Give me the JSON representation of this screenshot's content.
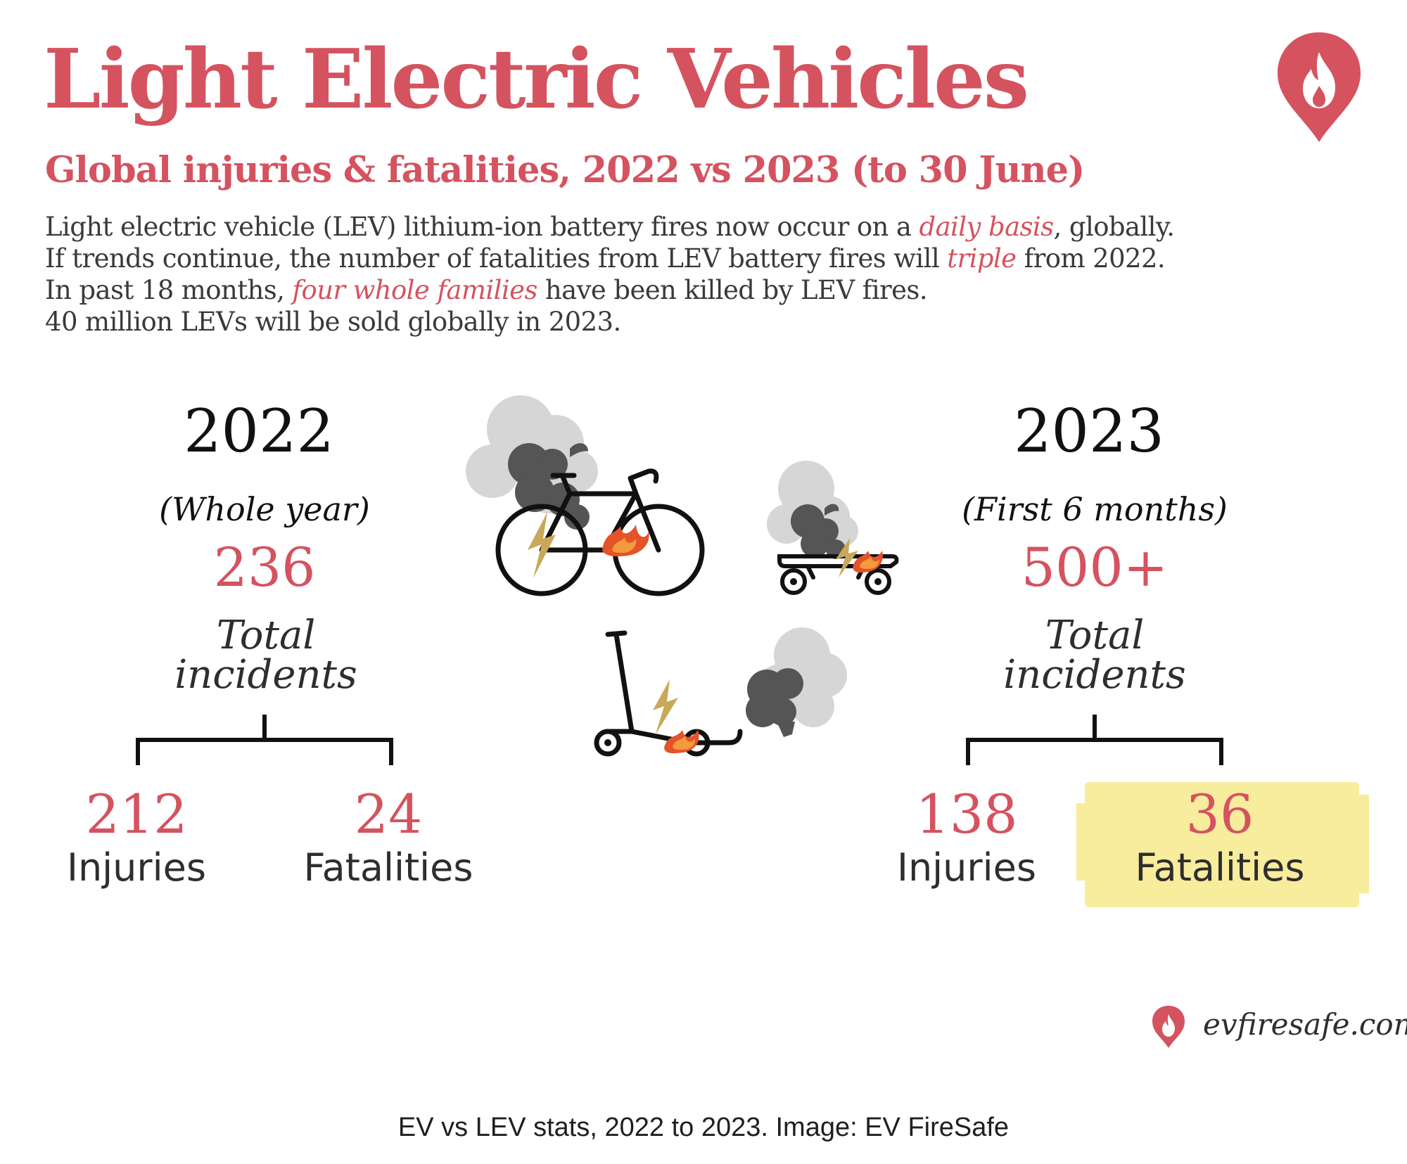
{
  "header": {
    "title": "Light Electric Vehicles",
    "subtitle": "Global injuries & fatalities, 2022 vs 2023 (to 30 June)"
  },
  "intro": {
    "line1": {
      "a": "Light electric vehicle (LEV) lithium-ion battery fires now occur on a ",
      "em": "daily basis",
      "b": ", globally."
    },
    "line2": {
      "a": "If trends continue, the number of fatalities from LEV battery fires will ",
      "em": "triple",
      "b": " from 2022."
    },
    "line3": {
      "a": "In past 18 months, ",
      "em": "four whole families",
      "b": " have been killed by LEV fires."
    },
    "line4": "40 million LEVs will be sold globally in 2023."
  },
  "stats_2022": {
    "year": "2022",
    "period": "(Whole year)",
    "total": "236",
    "total_label_1": "Total",
    "total_label_2": "incidents",
    "injuries": "212",
    "injuries_label": "Injuries",
    "fatalities": "24",
    "fatalities_label": "Fatalities"
  },
  "stats_2023": {
    "year": "2023",
    "period": "(First 6 months)",
    "total": "500+",
    "total_label_1": "Total",
    "total_label_2": "incidents",
    "injuries": "138",
    "injuries_label": "Injuries",
    "fatalities": "36",
    "fatalities_label": "Fatalities"
  },
  "illustrations": [
    "bicycle-fire-icon",
    "skateboard-fire-icon",
    "scooter-fire-icon"
  ],
  "brand": {
    "website": "evfiresafe.com",
    "logo_icon": "flame-pin-icon",
    "accent_color": "#d4535f",
    "highlight_color": "#f8eb98"
  },
  "caption": "EV vs LEV stats, 2022 to 2023. Image: EV FireSafe"
}
